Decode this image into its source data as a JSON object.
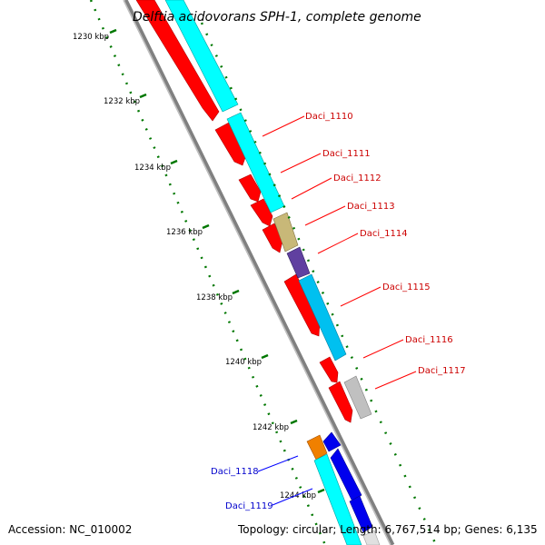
{
  "title": "Delftia acidovorans SPH-1, complete genome",
  "footer": {
    "accession": "Accession: NC_010002",
    "summary": "Topology: circular; Length: 6,767,514 bp; Genes: 6,135"
  },
  "colors": {
    "backbone": "#808080",
    "forward_cds": "#ff0000",
    "reverse_cds": "#0000ee",
    "label_red": "#cc0000",
    "label_blue": "#0000cc",
    "tick": "#007700"
  },
  "scale": {
    "unit": "kbp",
    "labels": [
      "1230 kbp",
      "1232 kbp",
      "1234 kbp",
      "1236 kbp",
      "1238 kbp",
      "1240 kbp",
      "1242 kbp",
      "1244 kbp"
    ]
  },
  "genes": [
    {
      "name": "Daci_1110",
      "strand": "forward"
    },
    {
      "name": "Daci_1111",
      "strand": "forward"
    },
    {
      "name": "Daci_1112",
      "strand": "forward"
    },
    {
      "name": "Daci_1113",
      "strand": "forward"
    },
    {
      "name": "Daci_1114",
      "strand": "forward"
    },
    {
      "name": "Daci_1115",
      "strand": "forward"
    },
    {
      "name": "Daci_1116",
      "strand": "forward"
    },
    {
      "name": "Daci_1117",
      "strand": "forward"
    },
    {
      "name": "Daci_1118",
      "strand": "reverse"
    },
    {
      "name": "Daci_1119",
      "strand": "reverse"
    }
  ],
  "feature_colors": {
    "cyan": "#00ffff",
    "light_blue": "#00c0f0",
    "olive": "#c8b878",
    "purple": "#6040a0",
    "gray": "#c0c0c0",
    "orange": "#f08000"
  }
}
